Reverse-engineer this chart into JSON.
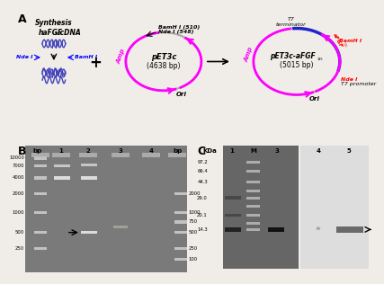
{
  "bg_color": "#f0ede8",
  "plasmid1_name": "pET3c\n(4638 bp)",
  "plasmid2_name": "pET3c-aFGF₁₃₅\n(5015 bp)",
  "bamhI_510": "BamH I (510)",
  "ndeI_548": "Nde I (548)",
  "amp_label": "Amp",
  "ori_label": "Ori",
  "t7_terminator": "T7\nterminator",
  "t7_promoter": "T7 promoter",
  "bamhI_red": "BamH I",
  "ndeI_red": "Nde I",
  "bp_left": [
    "10000",
    "7000",
    "4000",
    "2000",
    "1000",
    "500",
    "250"
  ],
  "bp_right": [
    "2000",
    "1000",
    "750",
    "500",
    "250",
    "100"
  ],
  "kda_labels": [
    "97.2",
    "66.4",
    "44.3",
    "29.0",
    "20.1",
    "14.3"
  ],
  "lane_labels_B": [
    "bp",
    "1",
    "2",
    "3",
    "4",
    "bp"
  ],
  "lane_labels_C": [
    "KDa",
    "1",
    "M",
    "3",
    "4",
    "5"
  ]
}
